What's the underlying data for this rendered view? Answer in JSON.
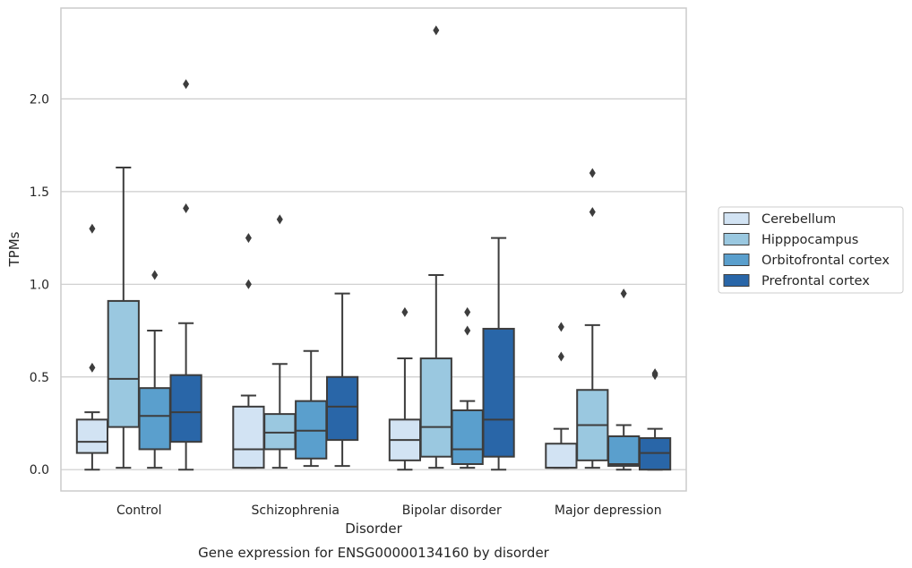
{
  "chart_data": {
    "type": "box",
    "title": "Gene expression for ENSG00000134160 by disorder",
    "xlabel": "Disorder",
    "ylabel": "TPMs",
    "ylim": [
      -0.115,
      2.49
    ],
    "yticks": [
      0.0,
      0.5,
      1.0,
      1.5,
      2.0
    ],
    "ytick_labels": [
      "0.0",
      "0.5",
      "1.0",
      "1.5",
      "2.0"
    ],
    "grid": true,
    "legend_position": "right",
    "categories": [
      "Control",
      "Schizophrenia",
      "Bipolar disorder",
      "Major depression"
    ],
    "series": [
      {
        "name": "Cerebellum",
        "color": "#d2e3f3",
        "boxes": [
          {
            "whisker_low": 0.0,
            "q1": 0.09,
            "median": 0.15,
            "q3": 0.27,
            "whisker_high": 0.31,
            "outliers": [
              0.55,
              1.3
            ]
          },
          {
            "whisker_low": 0.01,
            "q1": 0.01,
            "median": 0.11,
            "q3": 0.34,
            "whisker_high": 0.4,
            "outliers": [
              1.0,
              1.25
            ]
          },
          {
            "whisker_low": 0.0,
            "q1": 0.05,
            "median": 0.16,
            "q3": 0.27,
            "whisker_high": 0.6,
            "outliers": [
              0.85
            ]
          },
          {
            "whisker_low": 0.01,
            "q1": 0.01,
            "median": 0.01,
            "q3": 0.14,
            "whisker_high": 0.22,
            "outliers": [
              0.61,
              0.77
            ]
          }
        ]
      },
      {
        "name": "Hipppocampus",
        "color": "#9ac8e0",
        "boxes": [
          {
            "whisker_low": 0.01,
            "q1": 0.23,
            "median": 0.49,
            "q3": 0.91,
            "whisker_high": 1.63,
            "outliers": []
          },
          {
            "whisker_low": 0.01,
            "q1": 0.11,
            "median": 0.2,
            "q3": 0.3,
            "whisker_high": 0.57,
            "outliers": [
              1.35
            ]
          },
          {
            "whisker_low": 0.01,
            "q1": 0.07,
            "median": 0.23,
            "q3": 0.6,
            "whisker_high": 1.05,
            "outliers": [
              2.37
            ]
          },
          {
            "whisker_low": 0.01,
            "q1": 0.05,
            "median": 0.24,
            "q3": 0.43,
            "whisker_high": 0.78,
            "outliers": [
              1.39,
              1.6
            ]
          }
        ]
      },
      {
        "name": "Orbitofrontal cortex",
        "color": "#5a9fcd",
        "boxes": [
          {
            "whisker_low": 0.01,
            "q1": 0.11,
            "median": 0.29,
            "q3": 0.44,
            "whisker_high": 0.75,
            "outliers": [
              1.05
            ]
          },
          {
            "whisker_low": 0.02,
            "q1": 0.06,
            "median": 0.21,
            "q3": 0.37,
            "whisker_high": 0.64,
            "outliers": []
          },
          {
            "whisker_low": 0.01,
            "q1": 0.03,
            "median": 0.11,
            "q3": 0.32,
            "whisker_high": 0.37,
            "outliers": [
              0.75,
              0.85
            ]
          },
          {
            "whisker_low": 0.0,
            "q1": 0.02,
            "median": 0.03,
            "q3": 0.18,
            "whisker_high": 0.24,
            "outliers": [
              0.95
            ]
          }
        ]
      },
      {
        "name": "Prefrontal cortex",
        "color": "#2966a8",
        "boxes": [
          {
            "whisker_low": 0.0,
            "q1": 0.15,
            "median": 0.31,
            "q3": 0.51,
            "whisker_high": 0.79,
            "outliers": [
              1.41,
              2.08
            ]
          },
          {
            "whisker_low": 0.02,
            "q1": 0.16,
            "median": 0.34,
            "q3": 0.5,
            "whisker_high": 0.95,
            "outliers": []
          },
          {
            "whisker_low": 0.0,
            "q1": 0.07,
            "median": 0.27,
            "q3": 0.76,
            "whisker_high": 1.25,
            "outliers": []
          },
          {
            "whisker_low": 0.0,
            "q1": 0.0,
            "median": 0.09,
            "q3": 0.17,
            "whisker_high": 0.22,
            "outliers": [
              0.51,
              0.52
            ]
          }
        ]
      }
    ]
  }
}
